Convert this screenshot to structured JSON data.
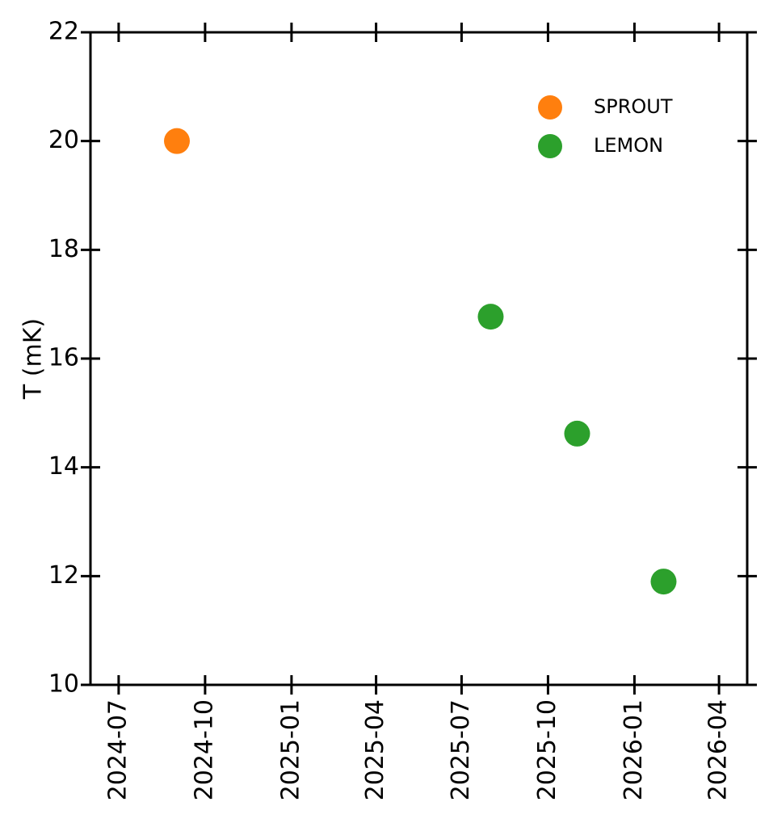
{
  "chart_data": {
    "type": "scatter",
    "ylabel": "T (mK)",
    "xlim": [
      "2024-06",
      "2026-05"
    ],
    "xticks": [
      "2024-07",
      "2024-10",
      "2025-01",
      "2025-04",
      "2025-07",
      "2025-10",
      "2026-01",
      "2026-04"
    ],
    "ylim": [
      10,
      22
    ],
    "yticks": [
      10,
      12,
      14,
      16,
      18,
      20,
      22
    ],
    "legend": "upper right",
    "series": [
      {
        "name": "SPROUT",
        "color": "#ff7f0e",
        "x": [
          "2024-09"
        ],
        "values": [
          20
        ]
      },
      {
        "name": "LEMON",
        "color": "#2ca02c",
        "x": [
          "2025-08",
          "2025-11",
          "2026-02"
        ],
        "values": [
          16.77,
          14.62,
          11.9
        ]
      }
    ]
  }
}
